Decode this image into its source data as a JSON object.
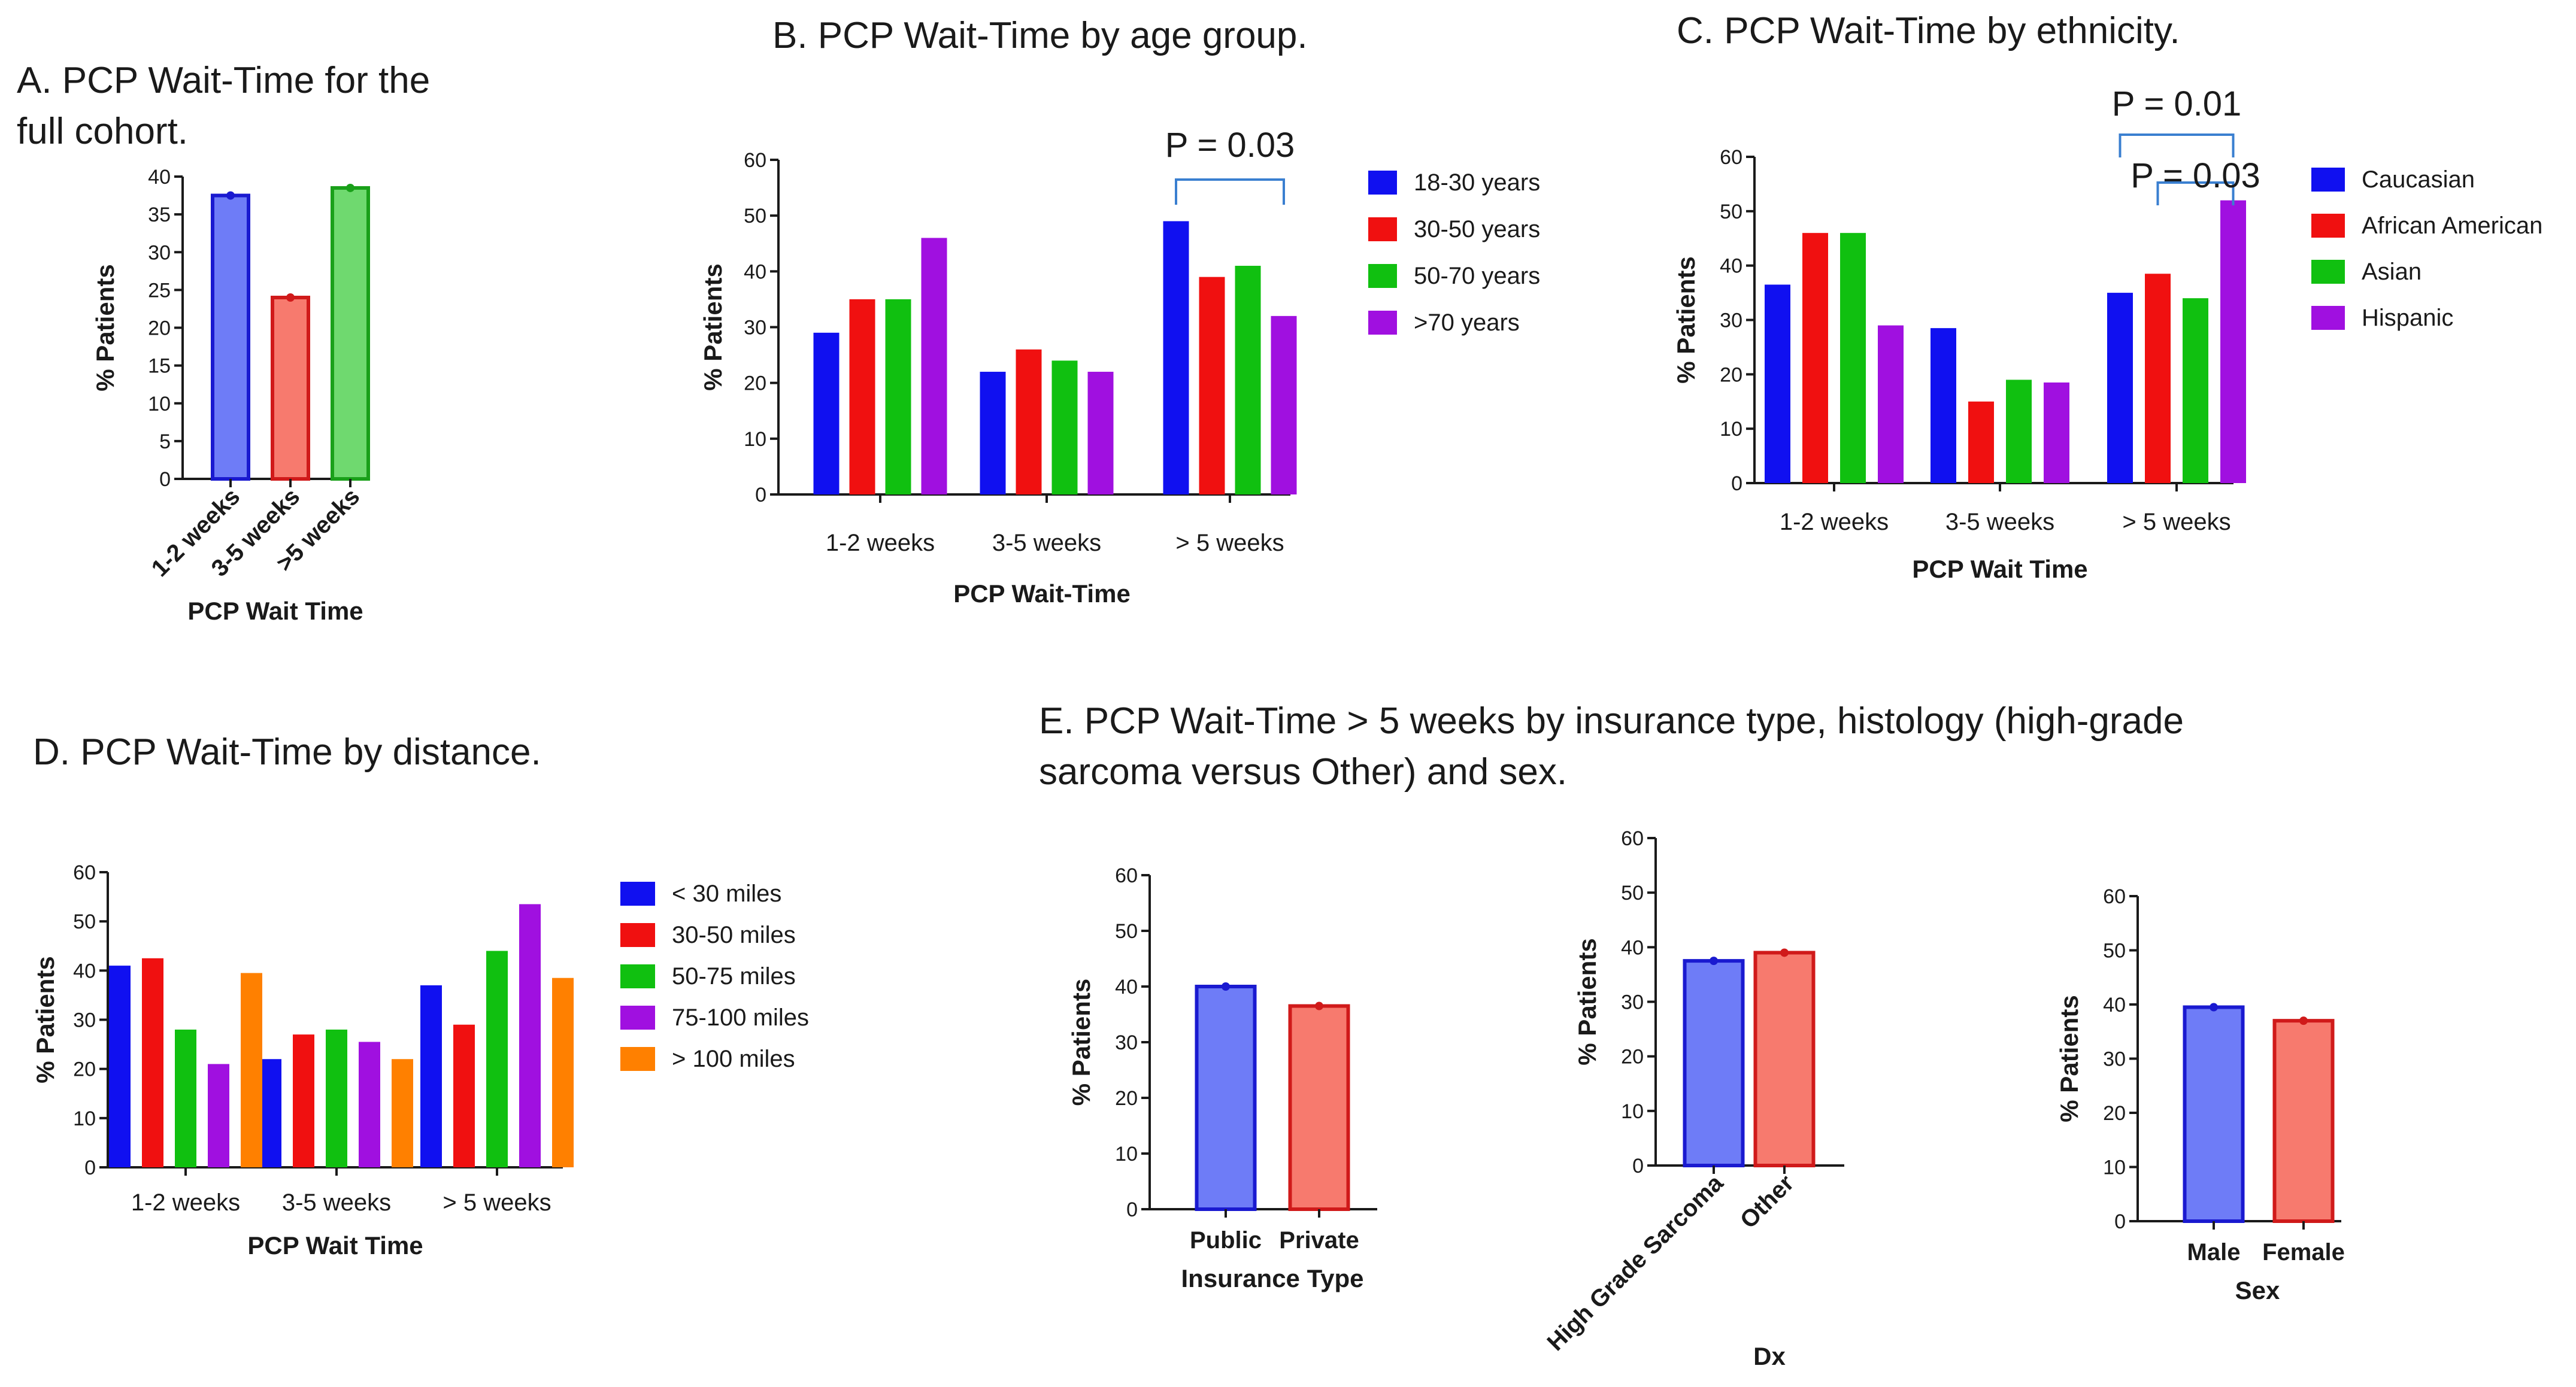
{
  "panels": {
    "A": {
      "title_lines": [
        "A. PCP Wait-Time for the",
        "full cohort."
      ]
    },
    "B": {
      "title_lines": [
        "B. PCP Wait-Time by age group."
      ]
    },
    "C": {
      "title_lines": [
        "C. PCP Wait-Time by ethnicity."
      ]
    },
    "D": {
      "title_lines": [
        "D. PCP Wait-Time by distance."
      ]
    },
    "E": {
      "title_lines": [
        "E. PCP Wait-Time > 5 weeks by insurance type, histology (high-grade",
        "sarcoma versus Other) and sex."
      ]
    }
  },
  "colors": {
    "blue": "#1010f0",
    "red": "#f01010",
    "green": "#10c010",
    "purple": "#a010e0",
    "orange": "#ff8000",
    "light_blue": "#6e7cf7",
    "light_red": "#f77a6e",
    "light_green": "#6fd96f",
    "dark_blue": "#1a1ad0",
    "dark_red": "#d01a1a",
    "dark_green": "#1aa01a"
  },
  "chart_data": [
    {
      "id": "A",
      "type": "bar",
      "categories": [
        "1-2 weeks",
        "3-5 weeks",
        ">5 weeks"
      ],
      "values": [
        37.5,
        24,
        38.5
      ],
      "ylim": [
        0,
        40
      ],
      "yticks": [
        0,
        5,
        10,
        15,
        20,
        25,
        30,
        35,
        40
      ],
      "xlabel": "PCP Wait Time",
      "ylabel": "% Patients"
    },
    {
      "id": "B",
      "type": "bar",
      "categories": [
        "1-2 weeks",
        "3-5 weeks",
        "> 5 weeks"
      ],
      "series": [
        {
          "name": "18-30 years",
          "values": [
            29,
            22,
            49
          ]
        },
        {
          "name": "30-50 years",
          "values": [
            35,
            26,
            39
          ]
        },
        {
          "name": "50-70 years",
          "values": [
            35,
            24,
            41
          ]
        },
        {
          "name": ">70 years",
          "values": [
            46,
            22,
            32
          ]
        }
      ],
      "ylim": [
        0,
        60
      ],
      "yticks": [
        0,
        10,
        20,
        30,
        40,
        50,
        60
      ],
      "xlabel": "PCP Wait-Time",
      "ylabel": "% Patients",
      "annotations": [
        {
          "text": "P = 0.03",
          "group": 2,
          "from_series": 0,
          "to_series": 3
        }
      ]
    },
    {
      "id": "C",
      "type": "bar",
      "categories": [
        "1-2 weeks",
        "3-5 weeks",
        "> 5 weeks"
      ],
      "series": [
        {
          "name": "Caucasian",
          "values": [
            36.5,
            28.5,
            35
          ]
        },
        {
          "name": "African American",
          "values": [
            46,
            15,
            38.5
          ]
        },
        {
          "name": "Asian",
          "values": [
            46,
            19,
            34
          ]
        },
        {
          "name": "Hispanic",
          "values": [
            29,
            18.5,
            52
          ]
        }
      ],
      "ylim": [
        0,
        60
      ],
      "yticks": [
        0,
        10,
        20,
        30,
        40,
        50,
        60
      ],
      "xlabel": "PCP Wait Time",
      "ylabel": "% Patients",
      "annotations": [
        {
          "text": "P = 0.01",
          "group": 2,
          "from_series": 0,
          "to_series": 3
        },
        {
          "text": "P = 0.03",
          "group": 2,
          "from_series": 1,
          "to_series": 3
        }
      ]
    },
    {
      "id": "D",
      "type": "bar",
      "categories": [
        "1-2 weeks",
        "3-5 weeks",
        "> 5 weeks"
      ],
      "series": [
        {
          "name": "< 30 miles",
          "values": [
            41,
            22,
            37
          ]
        },
        {
          "name": "30-50 miles",
          "values": [
            42.5,
            27,
            29
          ]
        },
        {
          "name": "50-75 miles",
          "values": [
            28,
            28,
            44
          ]
        },
        {
          "name": "75-100 miles",
          "values": [
            21,
            25.5,
            53.5
          ]
        },
        {
          "name": "> 100 miles",
          "values": [
            39.5,
            22,
            38.5
          ]
        }
      ],
      "ylim": [
        0,
        60
      ],
      "yticks": [
        0,
        10,
        20,
        30,
        40,
        50,
        60
      ],
      "xlabel": "PCP Wait Time",
      "ylabel": "% Patients"
    },
    {
      "id": "E1",
      "type": "bar",
      "categories": [
        "Public",
        "Private"
      ],
      "values": [
        40,
        36.5
      ],
      "ylim": [
        0,
        60
      ],
      "yticks": [
        0,
        10,
        20,
        30,
        40,
        50,
        60
      ],
      "xlabel": "Insurance Type",
      "ylabel": "% Patients"
    },
    {
      "id": "E2",
      "type": "bar",
      "categories": [
        "High Grade Sarcoma",
        "Other"
      ],
      "values": [
        37.5,
        39
      ],
      "ylim": [
        0,
        60
      ],
      "yticks": [
        0,
        10,
        20,
        30,
        40,
        50,
        60
      ],
      "xlabel": "Dx",
      "ylabel": "% Patients"
    },
    {
      "id": "E3",
      "type": "bar",
      "categories": [
        "Male",
        "Female"
      ],
      "values": [
        39.5,
        37
      ],
      "ylim": [
        0,
        60
      ],
      "yticks": [
        0,
        10,
        20,
        30,
        40,
        50,
        60
      ],
      "xlabel": "Sex",
      "ylabel": "% Patients"
    }
  ]
}
